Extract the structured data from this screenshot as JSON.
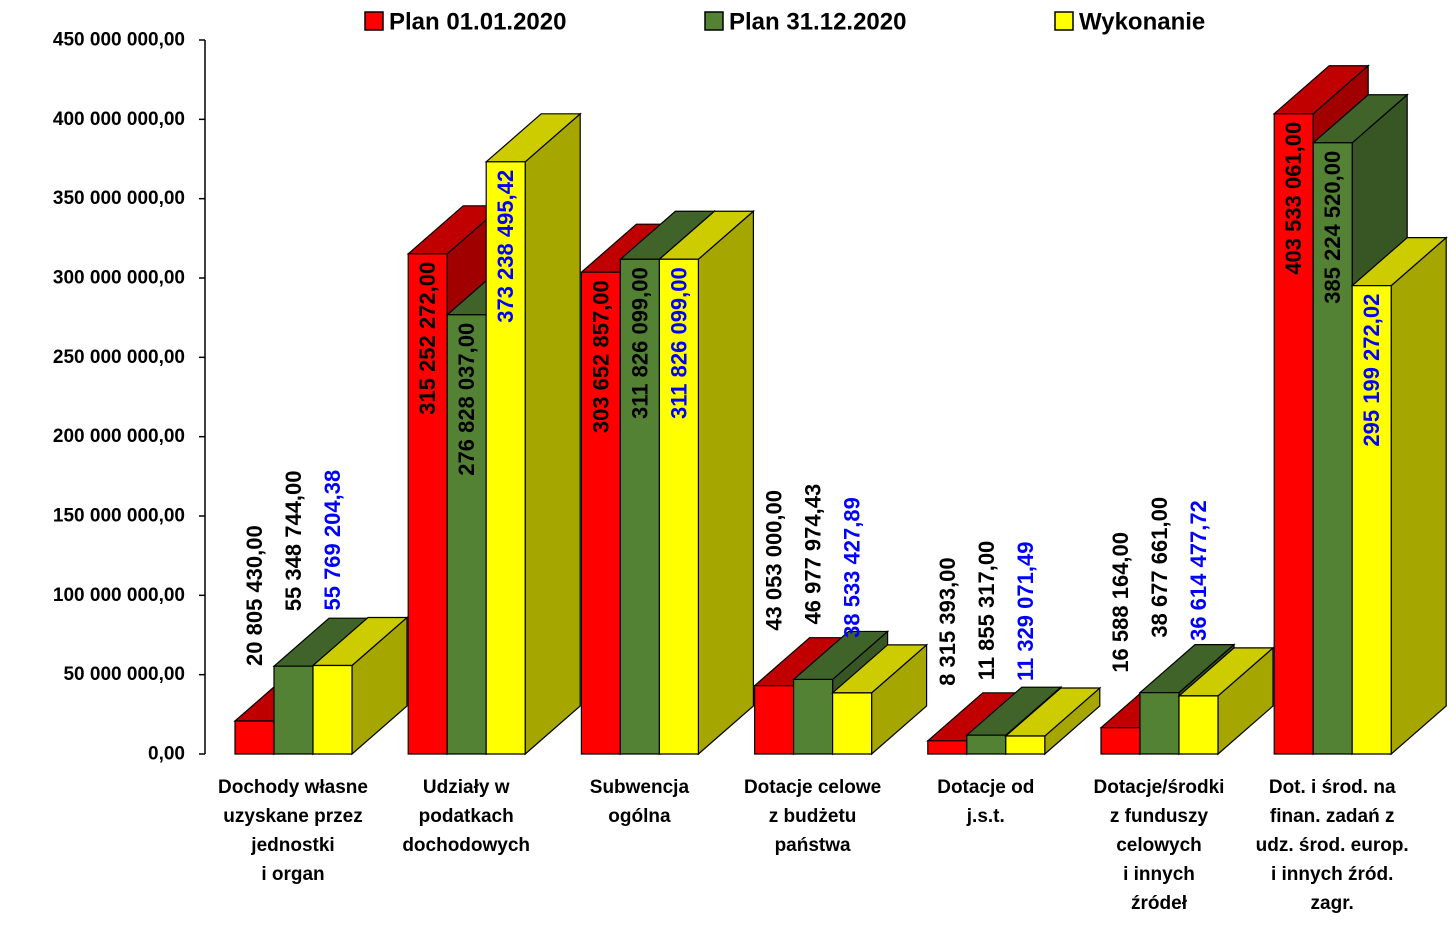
{
  "chart_data": {
    "type": "bar3d",
    "categories": [
      "Dochody własne\nuzyskane przez\njednostki\ni organ",
      "Udziały w\npodatkach\ndochodowych",
      "Subwencja\nogólna",
      "Dotacje celowe\nz budżetu\npaństwa",
      "Dotacje od\nj.s.t.",
      "Dotacje/środki\nz funduszy\ncelowych\ni innych\nźródeł",
      "Dot. i środ. na\nfinan. zadań z\nudz. środ. europ.\ni innych źród.\nzagr."
    ],
    "series": [
      {
        "name": "Plan 01.01.2020",
        "color": "#ff0000",
        "top": "#c00000",
        "side": "#a00000",
        "label_color": "#000000",
        "values": [
          20805430.0,
          315252272.0,
          303652857.0,
          43053000.0,
          8315393.0,
          16588164.0,
          403533061.0
        ],
        "value_labels": [
          "20 805 430,00",
          "315 252 272,00",
          "303 652 857,00",
          "43 053 000,00",
          "8 315 393,00",
          "16 588 164,00",
          "403 533 061,00"
        ]
      },
      {
        "name": "Plan 31.12.2020",
        "color": "#548235",
        "top": "#3f6328",
        "side": "#375623",
        "label_color": "#000000",
        "values": [
          55348744.0,
          276828037.0,
          311826099.0,
          46977974.43,
          11855317.0,
          38677661.0,
          385224520.0
        ],
        "value_labels": [
          "55 348 744,00",
          "276 828 037,00",
          "311 826 099,00",
          "46 977 974,43",
          "11 855 317,00",
          "38 677 661,00",
          "385 224 520,00"
        ]
      },
      {
        "name": "Wykonanie",
        "color": "#ffff00",
        "top": "#cccc00",
        "side": "#a6a600",
        "label_color": "#0000ff",
        "values": [
          55769204.38,
          373238495.42,
          311826099.0,
          38533427.89,
          11329071.49,
          36614477.72,
          295199272.02
        ],
        "value_labels": [
          "55 769 204,38",
          "373 238 495,42",
          "311 826 099,00",
          "38 533 427,89",
          "11 329 071,49",
          "36 614 477,72",
          "295 199 272,02"
        ]
      }
    ],
    "ylim": [
      0,
      450000000
    ],
    "yticks": [
      {
        "value": 0,
        "label": "0,00"
      },
      {
        "value": 50000000,
        "label": "50 000 000,00"
      },
      {
        "value": 100000000,
        "label": "100 000 000,00"
      },
      {
        "value": 150000000,
        "label": "150 000 000,00"
      },
      {
        "value": 200000000,
        "label": "200 000 000,00"
      },
      {
        "value": 250000000,
        "label": "250 000 000,00"
      },
      {
        "value": 300000000,
        "label": "300 000 000,00"
      },
      {
        "value": 350000000,
        "label": "350 000 000,00"
      },
      {
        "value": 400000000,
        "label": "400 000 000,00"
      },
      {
        "value": 450000000,
        "label": "450 000 000,00"
      }
    ],
    "grid": false,
    "legend": "top"
  }
}
